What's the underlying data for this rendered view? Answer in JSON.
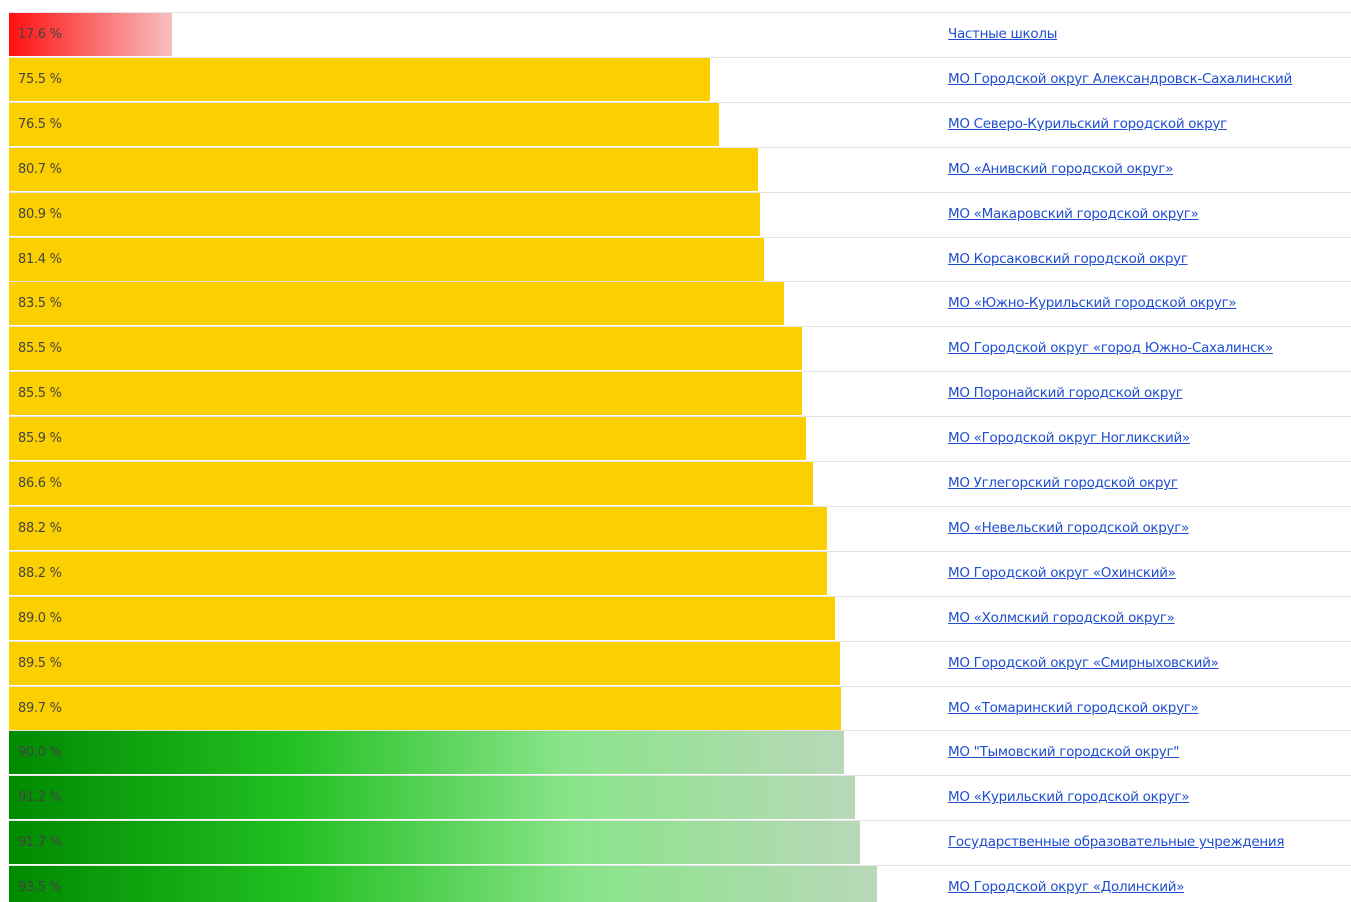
{
  "chart_data": {
    "type": "bar",
    "orientation": "horizontal",
    "categories": [
      "Частные школы",
      "МО Городской округ Александровск-Сахалинский",
      "МО Северо-Курильский городской округ",
      "МО «Анивский городской округ»",
      "МО «Макаровский городской округ»",
      "МО Корсаковский городской округ",
      "МО «Южно-Курильский городской округ»",
      "МО Городской округ «город Южно-Сахалинск»",
      "МО Поронайский городской округ",
      "МО «Городской округ Ногликский»",
      "МО Углегорский городской округ",
      "МО «Невельский городской округ»",
      "МО Городской округ «Охинский»",
      "МО «Холмский городской округ»",
      "МО Городской округ «Смирныховский»",
      "МО «Томаринский городской округ»",
      "МО \"Тымовский городской округ\"",
      "МО «Курильский городской округ»",
      "Государственные образовательные учреждения",
      "МО Городской округ «Долинский»"
    ],
    "values": [
      17.6,
      75.5,
      76.5,
      80.7,
      80.9,
      81.4,
      83.5,
      85.5,
      85.5,
      85.9,
      86.6,
      88.2,
      88.2,
      89.0,
      89.5,
      89.7,
      90.0,
      91.2,
      91.7,
      93.5
    ],
    "value_labels": [
      "17.6 %",
      "75.5 %",
      "76.5 %",
      "80.7 %",
      "80.9 %",
      "81.4 %",
      "83.5 %",
      "85.5 %",
      "85.5 %",
      "85.9 %",
      "86.6 %",
      "88.2 %",
      "88.2 %",
      "89.0 %",
      "89.5 %",
      "89.7 %",
      "90.0 %",
      "91.2 %",
      "91.7 %",
      "93.5 %"
    ],
    "colors": [
      [
        "#ff1010",
        "#f7c0c0"
      ],
      [
        "#fcd000"
      ],
      [
        "#fcd000"
      ],
      [
        "#fcd000"
      ],
      [
        "#fcd000"
      ],
      [
        "#fcd000"
      ],
      [
        "#fcd000"
      ],
      [
        "#fcd000"
      ],
      [
        "#fcd000"
      ],
      [
        "#fcd000"
      ],
      [
        "#fcd000"
      ],
      [
        "#fcd000"
      ],
      [
        "#fcd000"
      ],
      [
        "#fcd000"
      ],
      [
        "#fcd000"
      ],
      [
        "#fcd000"
      ],
      [
        "#008a00",
        "#22c022",
        "#8ae48a",
        "#b8d8b8"
      ],
      [
        "#008a00",
        "#22c022",
        "#8ae48a",
        "#b8d8b8"
      ],
      [
        "#008a00",
        "#22c022",
        "#8ae48a",
        "#b8d8b8"
      ],
      [
        "#008a00",
        "#22c022",
        "#8ae48a",
        "#b8d8b8"
      ]
    ],
    "xlim": [
      0,
      100
    ]
  }
}
